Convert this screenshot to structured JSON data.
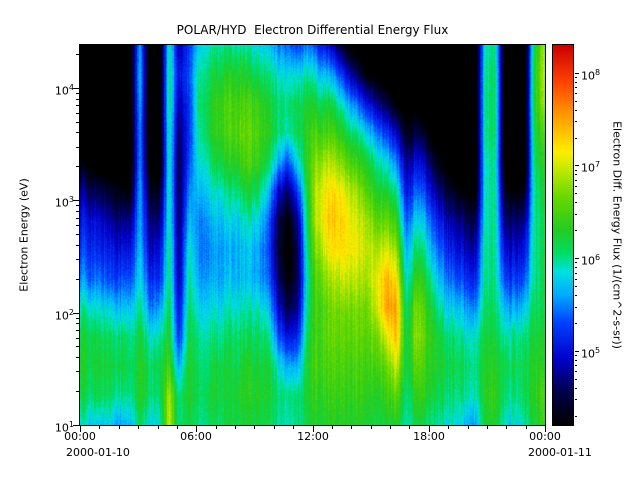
{
  "title": "POLAR/HYD  Electron Differential Energy Flux",
  "axes": {
    "ylabel": "Electron Energy (eV)",
    "date_left": "2000-01-10",
    "date_right": "2000-01-11"
  },
  "colorbar": {
    "label": "Electron Diff. Energy Flux (1/(cm^2-s-sr))"
  },
  "chart_data": {
    "type": "heatmap",
    "title": "POLAR/HYD  Electron Differential Energy Flux",
    "ylabel": "Electron Energy (eV)",
    "x_axis": {
      "range_hours": [
        0,
        24
      ],
      "tick_hours": [
        0,
        6,
        12,
        18,
        24
      ],
      "tick_labels": [
        "00:00",
        "06:00",
        "12:00",
        "18:00",
        "00:00"
      ],
      "minor_tick_step_hours": 1,
      "date_left": "2000-01-10",
      "date_right": "2000-01-11"
    },
    "y_axis": {
      "label": "Electron Energy (eV)",
      "units": "eV",
      "scale": "log",
      "tick_exponents": [
        1,
        2,
        3,
        4
      ],
      "log10_range": [
        1.0,
        4.38
      ]
    },
    "colorbar": {
      "label": "Electron Diff. Energy Flux (1/(cm^2-s-sr))",
      "scale": "log",
      "tick_exponents": [
        5,
        6,
        7,
        8
      ],
      "log10_range": [
        4.2,
        8.3
      ]
    },
    "colormap_stops": [
      [
        4.2,
        "#000000"
      ],
      [
        4.55,
        "#00004a"
      ],
      [
        4.9,
        "#0000c8"
      ],
      [
        5.3,
        "#0040ff"
      ],
      [
        5.6,
        "#00aaff"
      ],
      [
        5.85,
        "#00e0e0"
      ],
      [
        6.05,
        "#00dd66"
      ],
      [
        6.3,
        "#22cc22"
      ],
      [
        6.65,
        "#66d800"
      ],
      [
        6.95,
        "#c0e800"
      ],
      [
        7.15,
        "#ffee00"
      ],
      [
        7.55,
        "#ff9900"
      ],
      [
        7.9,
        "#ff4400"
      ],
      [
        8.3,
        "#cc0000"
      ]
    ],
    "grid": {
      "description": "log10 electron differential energy flux sampled every 30 minutes (48 columns spanning 00:00-24:00 on 2000-01-10) at 14 log-spaced energies from 10 eV (first value of each column) to 24000 eV (last value); values at or below 4.2 render as black (below color scale)",
      "energy_log10_ev_rows": [
        1.0,
        1.26,
        1.52,
        1.78,
        2.04,
        2.3,
        2.56,
        2.82,
        3.08,
        3.34,
        3.6,
        3.86,
        4.12,
        4.38
      ],
      "time_step_hours": 0.5,
      "values_log10_flux_by_column": [
        [
          5.9,
          6.2,
          6.3,
          6.2,
          6.0,
          5.6,
          5.3,
          5.1,
          4.8,
          4.3,
          4.0,
          4.0,
          4.0,
          4.0
        ],
        [
          5.8,
          6.1,
          6.2,
          6.2,
          5.9,
          5.4,
          5.2,
          5.0,
          4.6,
          4.1,
          4.0,
          4.0,
          4.0,
          4.0
        ],
        [
          5.7,
          6.1,
          6.2,
          6.1,
          5.8,
          5.4,
          5.1,
          4.9,
          4.5,
          4.0,
          4.0,
          4.0,
          4.0,
          4.0
        ],
        [
          5.8,
          6.1,
          6.2,
          6.1,
          5.8,
          5.3,
          5.1,
          4.8,
          4.4,
          4.0,
          4.0,
          4.0,
          4.0,
          4.0
        ],
        [
          5.6,
          6.0,
          6.2,
          6.1,
          5.7,
          5.3,
          5.0,
          4.7,
          4.3,
          4.0,
          4.0,
          4.0,
          4.0,
          4.0
        ],
        [
          5.7,
          6.0,
          6.1,
          6.0,
          5.7,
          5.3,
          5.0,
          4.7,
          4.2,
          4.0,
          4.0,
          4.0,
          4.0,
          4.0
        ],
        [
          6.1,
          6.3,
          6.3,
          6.2,
          6.0,
          5.8,
          5.7,
          5.6,
          5.6,
          5.5,
          5.5,
          5.6,
          5.7,
          5.6
        ],
        [
          5.8,
          6.1,
          6.1,
          5.9,
          5.5,
          5.2,
          4.9,
          4.7,
          4.4,
          4.1,
          4.0,
          4.0,
          4.0,
          4.0
        ],
        [
          5.8,
          6.0,
          6.1,
          5.9,
          5.5,
          5.1,
          4.9,
          4.6,
          4.3,
          4.0,
          4.0,
          4.0,
          4.0,
          4.0
        ],
        [
          7.0,
          6.9,
          6.5,
          6.3,
          6.2,
          6.1,
          6.1,
          6.0,
          6.0,
          6.0,
          6.0,
          6.1,
          6.1,
          6.0
        ],
        [
          6.0,
          6.0,
          5.6,
          5.2,
          5.0,
          4.8,
          4.7,
          4.6,
          4.5,
          4.5,
          4.6,
          4.8,
          5.0,
          4.8
        ],
        [
          6.2,
          6.3,
          6.3,
          6.2,
          6.1,
          6.0,
          5.9,
          5.7,
          5.5,
          5.3,
          5.2,
          5.2,
          5.3,
          5.2
        ],
        [
          6.0,
          6.1,
          6.1,
          6.0,
          5.8,
          5.6,
          5.5,
          5.5,
          5.7,
          5.9,
          6.0,
          6.1,
          6.0,
          5.8
        ],
        [
          6.1,
          6.2,
          6.1,
          6.0,
          5.8,
          5.6,
          5.5,
          5.6,
          5.8,
          6.0,
          6.2,
          6.2,
          6.1,
          5.9
        ],
        [
          6.1,
          6.2,
          6.2,
          6.0,
          5.8,
          5.6,
          5.6,
          5.7,
          5.9,
          6.2,
          6.4,
          6.4,
          6.2,
          6.0
        ],
        [
          6.2,
          6.2,
          6.2,
          6.1,
          5.9,
          5.7,
          5.6,
          5.8,
          6.0,
          6.3,
          6.5,
          6.5,
          6.3,
          6.0
        ],
        [
          6.2,
          6.3,
          6.2,
          6.1,
          5.9,
          5.7,
          5.7,
          5.8,
          6.1,
          6.4,
          6.6,
          6.5,
          6.3,
          6.0
        ],
        [
          6.2,
          6.3,
          6.3,
          6.1,
          5.9,
          5.7,
          5.7,
          5.9,
          6.2,
          6.5,
          6.6,
          6.5,
          6.2,
          5.9
        ],
        [
          6.2,
          6.3,
          6.2,
          6.1,
          5.9,
          5.6,
          5.6,
          5.8,
          6.1,
          6.4,
          6.5,
          6.4,
          6.1,
          5.8
        ],
        [
          6.1,
          6.2,
          6.2,
          6.0,
          5.7,
          5.4,
          5.3,
          5.4,
          5.7,
          6.1,
          6.3,
          6.2,
          6.0,
          5.7
        ],
        [
          6.0,
          6.1,
          5.9,
          5.4,
          5.0,
          4.7,
          4.5,
          4.6,
          5.0,
          5.7,
          6.1,
          6.1,
          5.9,
          5.5
        ],
        [
          5.9,
          6.0,
          5.6,
          5.0,
          4.5,
          4.2,
          4.1,
          4.2,
          4.6,
          5.3,
          5.9,
          6.0,
          5.8,
          5.4
        ],
        [
          6.0,
          6.0,
          5.6,
          5.1,
          4.7,
          4.5,
          4.5,
          4.7,
          5.2,
          5.8,
          6.1,
          6.1,
          5.8,
          5.2
        ],
        [
          6.2,
          6.3,
          6.3,
          6.2,
          6.1,
          6.0,
          6.1,
          6.2,
          6.3,
          6.4,
          6.4,
          6.3,
          6.0,
          5.5
        ],
        [
          6.3,
          6.4,
          6.5,
          6.5,
          6.5,
          6.6,
          6.8,
          7.0,
          7.0,
          6.8,
          6.5,
          6.2,
          5.8,
          5.2
        ],
        [
          6.3,
          6.4,
          6.5,
          6.6,
          6.6,
          6.8,
          7.1,
          7.3,
          7.2,
          6.9,
          6.5,
          6.2,
          5.7,
          5.0
        ],
        [
          6.3,
          6.4,
          6.5,
          6.6,
          6.7,
          6.9,
          7.2,
          7.3,
          7.2,
          6.8,
          6.4,
          6.0,
          5.4,
          4.6
        ],
        [
          6.3,
          6.4,
          6.5,
          6.6,
          6.7,
          7.0,
          7.2,
          7.2,
          7.0,
          6.6,
          6.2,
          5.7,
          5.0,
          4.2
        ],
        [
          6.3,
          6.4,
          6.5,
          6.6,
          6.7,
          6.9,
          7.1,
          7.0,
          6.8,
          6.4,
          6.0,
          5.4,
          4.6,
          4.0
        ],
        [
          6.2,
          6.3,
          6.4,
          6.5,
          6.6,
          6.8,
          6.9,
          6.8,
          6.5,
          6.2,
          5.7,
          5.0,
          4.2,
          4.0
        ],
        [
          6.2,
          6.3,
          6.5,
          6.7,
          7.0,
          7.1,
          6.9,
          6.6,
          6.3,
          6.0,
          5.5,
          4.8,
          4.1,
          4.0
        ],
        [
          6.2,
          6.4,
          6.6,
          7.0,
          7.5,
          7.4,
          7.0,
          6.6,
          6.2,
          5.8,
          5.2,
          4.5,
          4.0,
          4.0
        ],
        [
          6.3,
          6.6,
          7.0,
          7.4,
          7.5,
          7.2,
          6.8,
          6.4,
          6.0,
          5.5,
          4.9,
          4.2,
          4.0,
          4.0
        ],
        [
          5.9,
          6.0,
          6.1,
          6.1,
          6.0,
          5.8,
          5.6,
          5.3,
          5.0,
          4.7,
          4.3,
          4.0,
          4.0,
          4.0
        ],
        [
          6.2,
          6.4,
          6.6,
          6.8,
          6.7,
          6.4,
          6.1,
          5.8,
          5.4,
          5.0,
          4.5,
          4.1,
          4.0,
          4.0
        ],
        [
          6.1,
          6.3,
          6.4,
          6.5,
          6.4,
          6.2,
          5.9,
          5.6,
          5.2,
          4.8,
          4.3,
          4.0,
          4.0,
          4.0
        ],
        [
          6.0,
          6.2,
          6.3,
          6.3,
          6.1,
          5.8,
          5.5,
          5.2,
          4.8,
          4.4,
          4.0,
          4.0,
          4.0,
          4.0
        ],
        [
          5.9,
          6.1,
          6.2,
          6.1,
          5.8,
          5.5,
          5.2,
          4.9,
          4.5,
          4.1,
          4.0,
          4.0,
          4.0,
          4.0
        ],
        [
          5.8,
          6.0,
          6.1,
          6.0,
          5.7,
          5.3,
          5.0,
          4.7,
          4.3,
          4.0,
          4.0,
          4.0,
          4.0,
          4.0
        ],
        [
          5.7,
          6.0,
          6.1,
          5.9,
          5.6,
          5.2,
          4.9,
          4.6,
          4.2,
          4.0,
          4.0,
          4.0,
          4.0,
          4.0
        ],
        [
          5.6,
          5.9,
          6.0,
          5.9,
          5.5,
          5.1,
          4.8,
          4.5,
          4.1,
          4.0,
          4.0,
          4.0,
          4.0,
          4.0
        ],
        [
          6.2,
          6.3,
          6.3,
          6.2,
          6.1,
          6.0,
          6.0,
          5.9,
          5.9,
          5.9,
          6.0,
          6.0,
          6.0,
          5.9
        ],
        [
          6.3,
          6.4,
          6.3,
          6.2,
          6.1,
          6.0,
          6.0,
          6.0,
          6.0,
          6.0,
          6.1,
          6.1,
          6.1,
          6.0
        ],
        [
          5.8,
          6.0,
          6.1,
          5.9,
          5.6,
          5.2,
          4.9,
          4.6,
          4.3,
          4.0,
          4.0,
          4.0,
          4.0,
          4.0
        ],
        [
          5.8,
          6.0,
          6.1,
          6.0,
          5.6,
          5.2,
          4.9,
          4.6,
          4.2,
          4.0,
          4.0,
          4.0,
          4.0,
          4.0
        ],
        [
          5.9,
          6.1,
          6.1,
          6.0,
          5.7,
          5.3,
          5.0,
          4.7,
          4.3,
          4.0,
          4.0,
          4.0,
          4.0,
          4.0
        ],
        [
          6.2,
          6.3,
          6.3,
          6.2,
          6.1,
          6.0,
          6.0,
          6.0,
          6.0,
          6.1,
          6.2,
          6.3,
          6.3,
          6.2
        ],
        [
          6.5,
          6.6,
          6.4,
          6.3,
          6.2,
          6.2,
          6.2,
          6.2,
          6.3,
          6.4,
          6.6,
          6.9,
          7.0,
          6.9
        ]
      ]
    }
  }
}
